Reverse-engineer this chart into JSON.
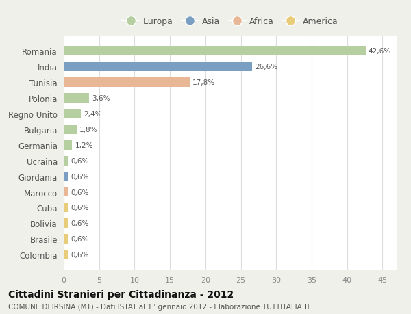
{
  "categories": [
    "Romania",
    "India",
    "Tunisia",
    "Polonia",
    "Regno Unito",
    "Bulgaria",
    "Germania",
    "Ucraina",
    "Giordania",
    "Marocco",
    "Cuba",
    "Bolivia",
    "Brasile",
    "Colombia"
  ],
  "values": [
    42.6,
    26.6,
    17.8,
    3.6,
    2.4,
    1.8,
    1.2,
    0.6,
    0.6,
    0.6,
    0.6,
    0.6,
    0.6,
    0.6
  ],
  "labels": [
    "42,6%",
    "26,6%",
    "17,8%",
    "3,6%",
    "2,4%",
    "1,8%",
    "1,2%",
    "0,6%",
    "0,6%",
    "0,6%",
    "0,6%",
    "0,6%",
    "0,6%",
    "0,6%"
  ],
  "colors": [
    "#b5cfa0",
    "#7a9fc2",
    "#e8b896",
    "#b5cfa0",
    "#b5cfa0",
    "#b5cfa0",
    "#b5cfa0",
    "#b5cfa0",
    "#7a9fc2",
    "#e8b896",
    "#e8cc7a",
    "#e8cc7a",
    "#e8cc7a",
    "#e8cc7a"
  ],
  "legend_labels": [
    "Europa",
    "Asia",
    "Africa",
    "America"
  ],
  "legend_colors": [
    "#b5cfa0",
    "#7a9fc2",
    "#e8b896",
    "#e8cc7a"
  ],
  "title": "Cittadini Stranieri per Cittadinanza - 2012",
  "subtitle": "COMUNE DI IRSINA (MT) - Dati ISTAT al 1° gennaio 2012 - Elaborazione TUTTITALIA.IT",
  "xlim": [
    0,
    47
  ],
  "xticks": [
    0,
    5,
    10,
    15,
    20,
    25,
    30,
    35,
    40,
    45
  ],
  "figure_bg": "#f0f0ea",
  "plot_bg": "#ffffff",
  "grid_color": "#dddddd",
  "bar_height": 0.6
}
